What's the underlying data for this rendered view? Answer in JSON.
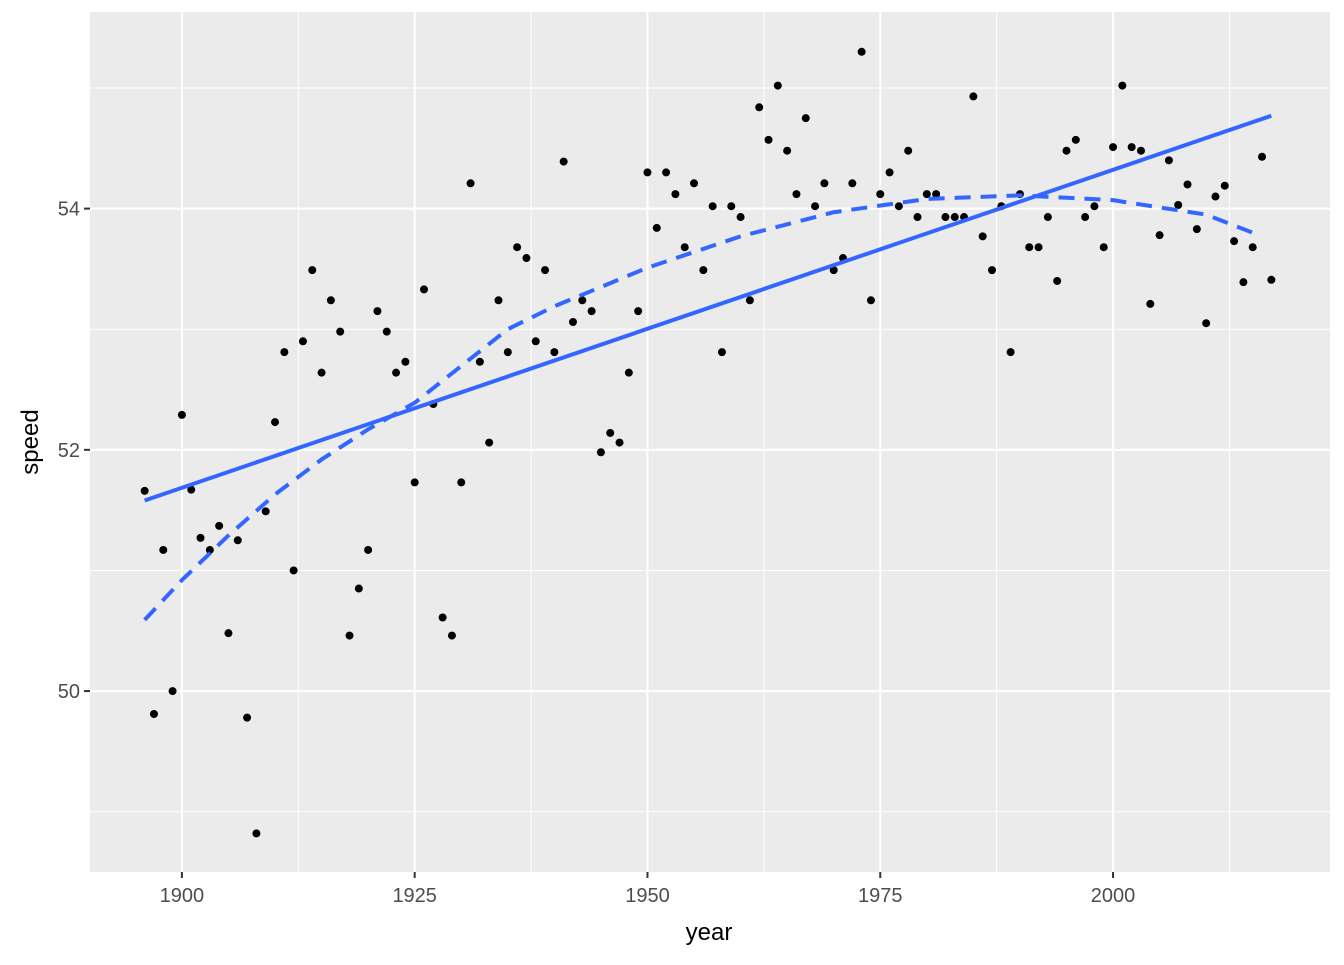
{
  "chart_data": {
    "type": "scatter",
    "xlabel": "year",
    "ylabel": "speed",
    "x": [
      1896,
      1897,
      1898,
      1899,
      1900,
      1901,
      1902,
      1903,
      1904,
      1905,
      1906,
      1907,
      1908,
      1909,
      1910,
      1911,
      1912,
      1913,
      1914,
      1915,
      1916,
      1917,
      1918,
      1919,
      1920,
      1921,
      1922,
      1923,
      1924,
      1925,
      1926,
      1927,
      1928,
      1929,
      1930,
      1931,
      1932,
      1933,
      1934,
      1935,
      1936,
      1937,
      1938,
      1939,
      1940,
      1941,
      1942,
      1943,
      1944,
      1945,
      1946,
      1947,
      1948,
      1949,
      1950,
      1951,
      1952,
      1953,
      1954,
      1955,
      1956,
      1957,
      1958,
      1959,
      1960,
      1961,
      1962,
      1963,
      1964,
      1965,
      1966,
      1967,
      1968,
      1969,
      1970,
      1971,
      1972,
      1973,
      1974,
      1975,
      1976,
      1977,
      1978,
      1979,
      1980,
      1981,
      1982,
      1983,
      1984,
      1985,
      1986,
      1987,
      1988,
      1989,
      1990,
      1991,
      1992,
      1993,
      1994,
      1995,
      1996,
      1997,
      1998,
      1999,
      2000,
      2001,
      2002,
      2003,
      2004,
      2005,
      2006,
      2007,
      2008,
      2009,
      2010,
      2011,
      2012,
      2013,
      2014,
      2015,
      2016,
      2017
    ],
    "values": [
      51.66,
      49.81,
      51.17,
      50.0,
      52.29,
      51.67,
      51.27,
      51.17,
      51.37,
      50.48,
      51.25,
      49.78,
      48.82,
      51.49,
      52.23,
      52.81,
      51.0,
      52.9,
      53.49,
      52.64,
      53.24,
      52.98,
      50.46,
      50.85,
      51.17,
      53.15,
      52.98,
      52.64,
      52.73,
      51.73,
      53.33,
      52.38,
      50.61,
      50.46,
      51.73,
      54.21,
      52.73,
      52.06,
      53.24,
      52.81,
      53.68,
      53.59,
      52.9,
      53.49,
      52.81,
      54.39,
      53.06,
      53.24,
      53.15,
      51.98,
      52.14,
      52.06,
      52.64,
      53.15,
      54.3,
      53.84,
      54.3,
      54.12,
      53.68,
      54.21,
      53.49,
      54.02,
      52.81,
      54.02,
      53.93,
      53.24,
      54.84,
      54.57,
      55.02,
      54.48,
      54.12,
      54.75,
      54.02,
      54.21,
      53.49,
      53.59,
      54.21,
      55.3,
      53.24,
      54.12,
      54.3,
      54.02,
      54.48,
      53.93,
      54.12,
      54.12,
      53.93,
      53.93,
      53.93,
      54.93,
      53.77,
      53.49,
      54.02,
      52.81,
      54.12,
      53.68,
      53.68,
      53.93,
      53.4,
      54.48,
      54.57,
      53.93,
      54.02,
      53.68,
      54.51,
      55.02,
      54.51,
      54.48,
      53.21,
      53.78,
      54.4,
      54.03,
      54.2,
      53.83,
      53.05,
      54.1,
      54.19,
      53.73,
      53.39,
      53.68,
      54.43,
      53.41
    ],
    "color": "#000000",
    "fits": [
      {
        "linetype": "solid",
        "color": "#3366ff",
        "x": [
          1896,
          2017
        ],
        "values": [
          51.58,
          54.77
        ]
      },
      {
        "linetype": "dashed",
        "color": "#3366ff",
        "x": [
          1896,
          1900,
          1905,
          1910,
          1915,
          1920,
          1925,
          1935,
          1940,
          1950,
          1960,
          1970,
          1980,
          1990,
          2000,
          2010,
          2015
        ],
        "values": [
          50.59,
          50.92,
          51.29,
          51.63,
          51.92,
          52.17,
          52.39,
          53.0,
          53.19,
          53.51,
          53.77,
          53.97,
          54.08,
          54.11,
          54.07,
          53.95,
          53.8
        ]
      }
    ],
    "xlim": [
      1890.13,
      2023.3
    ],
    "ylim": [
      48.5,
      55.63
    ],
    "xticks": [
      1900,
      1925,
      1950,
      1975,
      2000
    ],
    "yticks": [
      50,
      52,
      54
    ],
    "xminor": [
      1912.5,
      1937.5,
      1962.5,
      1987.5,
      2012.5
    ],
    "yminor": [
      49,
      51,
      53,
      55
    ],
    "grid": true
  }
}
